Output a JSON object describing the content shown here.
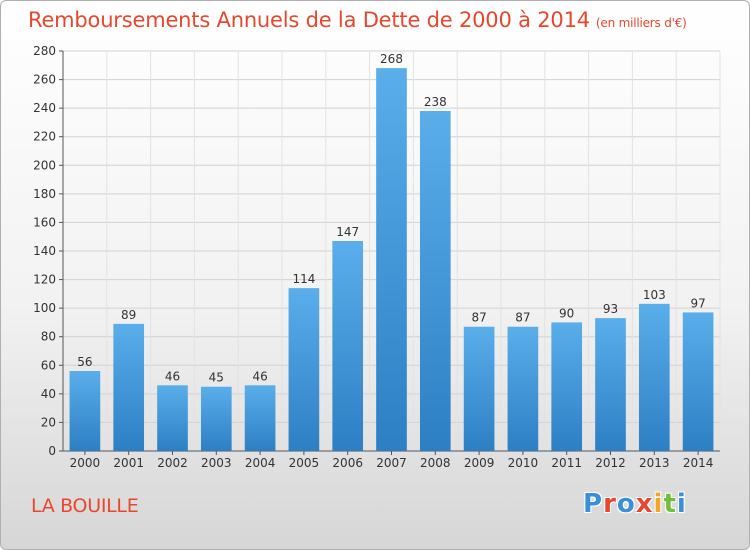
{
  "header": {
    "title": "Remboursements Annuels de la Dette de 2000 à 2014",
    "unit": "(en milliers d'€)"
  },
  "footer": {
    "town": "LA BOUILLE",
    "logo": "Proxiti"
  },
  "colors": {
    "title": "#e8472e",
    "bar_top": "#5aaeea",
    "bar_bottom": "#2d7fc4",
    "logo_letters": [
      "#3a8fd8",
      "#e8472e",
      "#3a8fd8",
      "#e8472e",
      "#f4a623",
      "#6fbf3a",
      "#3a8fd8"
    ]
  },
  "chart_data": {
    "type": "bar",
    "title": "Remboursements Annuels de la Dette de 2000 à 2014",
    "subtitle": "(en milliers d'€)",
    "categories": [
      "2000",
      "2001",
      "2002",
      "2003",
      "2004",
      "2005",
      "2006",
      "2007",
      "2008",
      "2009",
      "2010",
      "2011",
      "2012",
      "2013",
      "2014"
    ],
    "values": [
      56,
      89,
      46,
      45,
      46,
      114,
      147,
      268,
      238,
      87,
      87,
      90,
      93,
      103,
      97
    ],
    "ylim": [
      0,
      280
    ],
    "yticks": [
      0,
      20,
      40,
      60,
      80,
      100,
      120,
      140,
      160,
      180,
      200,
      220,
      240,
      260,
      280
    ],
    "grid": true,
    "data_labels": true
  }
}
